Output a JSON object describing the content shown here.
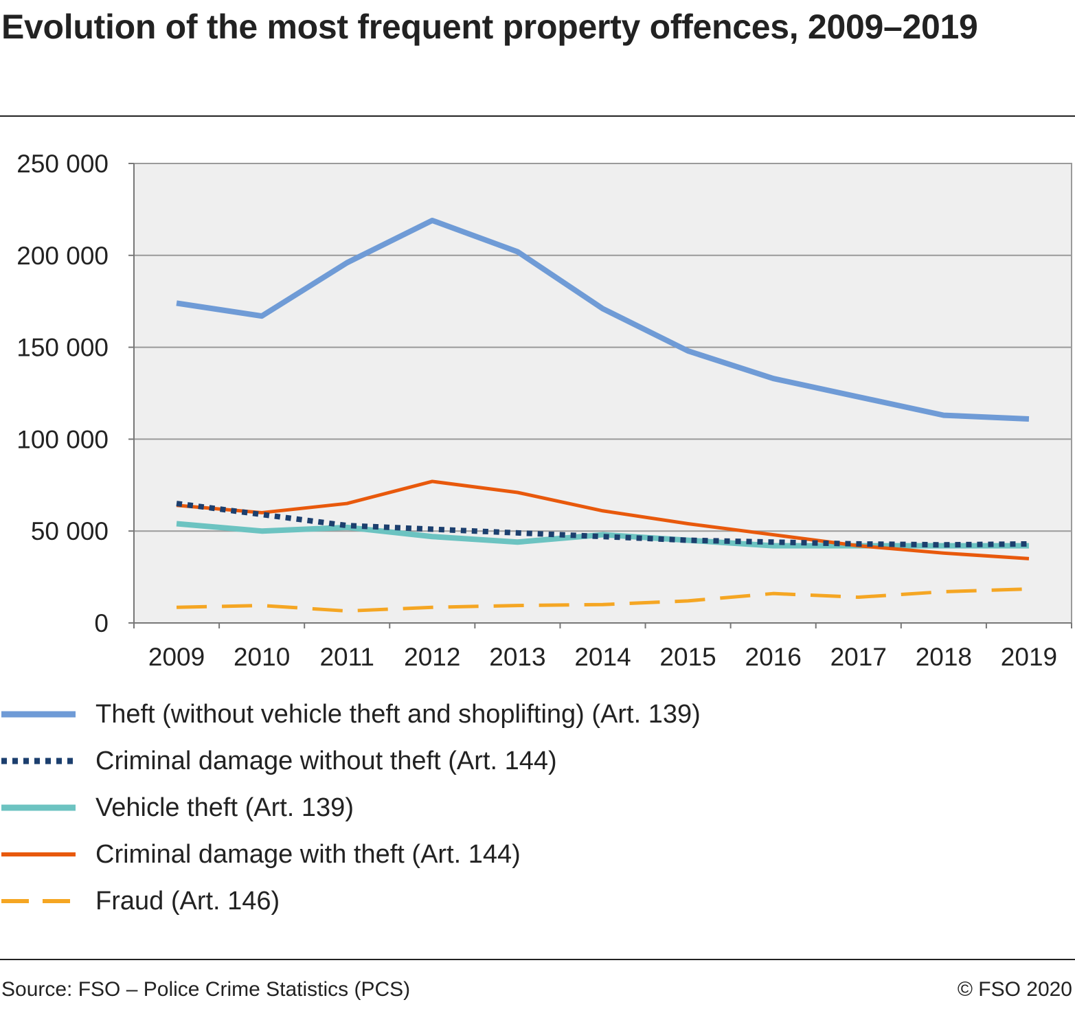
{
  "title": "Evolution of the most frequent property offences, 2009–2019",
  "footer": {
    "source": "Source: FSO – Police Crime Statistics (PCS)",
    "copyright": "© FSO 2020"
  },
  "chart_data": {
    "type": "line",
    "title": "Evolution of the most frequent property offences, 2009–2019",
    "xlabel": "",
    "ylabel": "",
    "x": [
      "2009",
      "2010",
      "2011",
      "2012",
      "2013",
      "2014",
      "2015",
      "2016",
      "2017",
      "2018",
      "2019"
    ],
    "ylim": [
      0,
      250000
    ],
    "yticks": [
      0,
      50000,
      100000,
      150000,
      200000,
      250000
    ],
    "ytick_labels": [
      "0",
      "50 000",
      "100 000",
      "150 000",
      "200 000",
      "250 000"
    ],
    "grid": true,
    "legend_position": "bottom",
    "plot_background": "#efefef",
    "series": [
      {
        "name": "Theft (without vehicle theft and shoplifting) (Art. 139)",
        "color": "#6f9bd6",
        "style": "solid-thick",
        "values": [
          174000,
          167000,
          196000,
          219000,
          202000,
          171000,
          148000,
          133000,
          123000,
          113000,
          111000
        ]
      },
      {
        "name": "Criminal damage without theft (Art. 144)",
        "color": "#1c3f6e",
        "style": "dotted",
        "values": [
          65000,
          59000,
          53000,
          51000,
          49000,
          47000,
          45000,
          44000,
          43000,
          42500,
          43000
        ]
      },
      {
        "name": "Vehicle theft (Art. 139)",
        "color": "#6cc3c1",
        "style": "solid-thick",
        "values": [
          54000,
          50000,
          52000,
          47000,
          44000,
          48000,
          45000,
          42000,
          42000,
          42000,
          42000
        ]
      },
      {
        "name": "Criminal damage with theft (Art. 144)",
        "color": "#e8590c",
        "style": "solid",
        "values": [
          64000,
          60000,
          65000,
          77000,
          71000,
          61000,
          54000,
          48000,
          42000,
          38000,
          35000
        ]
      },
      {
        "name": "Fraud (Art. 146)",
        "color": "#f5a623",
        "style": "dashed",
        "values": [
          8500,
          9500,
          6500,
          8500,
          9500,
          10000,
          12000,
          16000,
          14000,
          17000,
          18500
        ]
      }
    ]
  }
}
